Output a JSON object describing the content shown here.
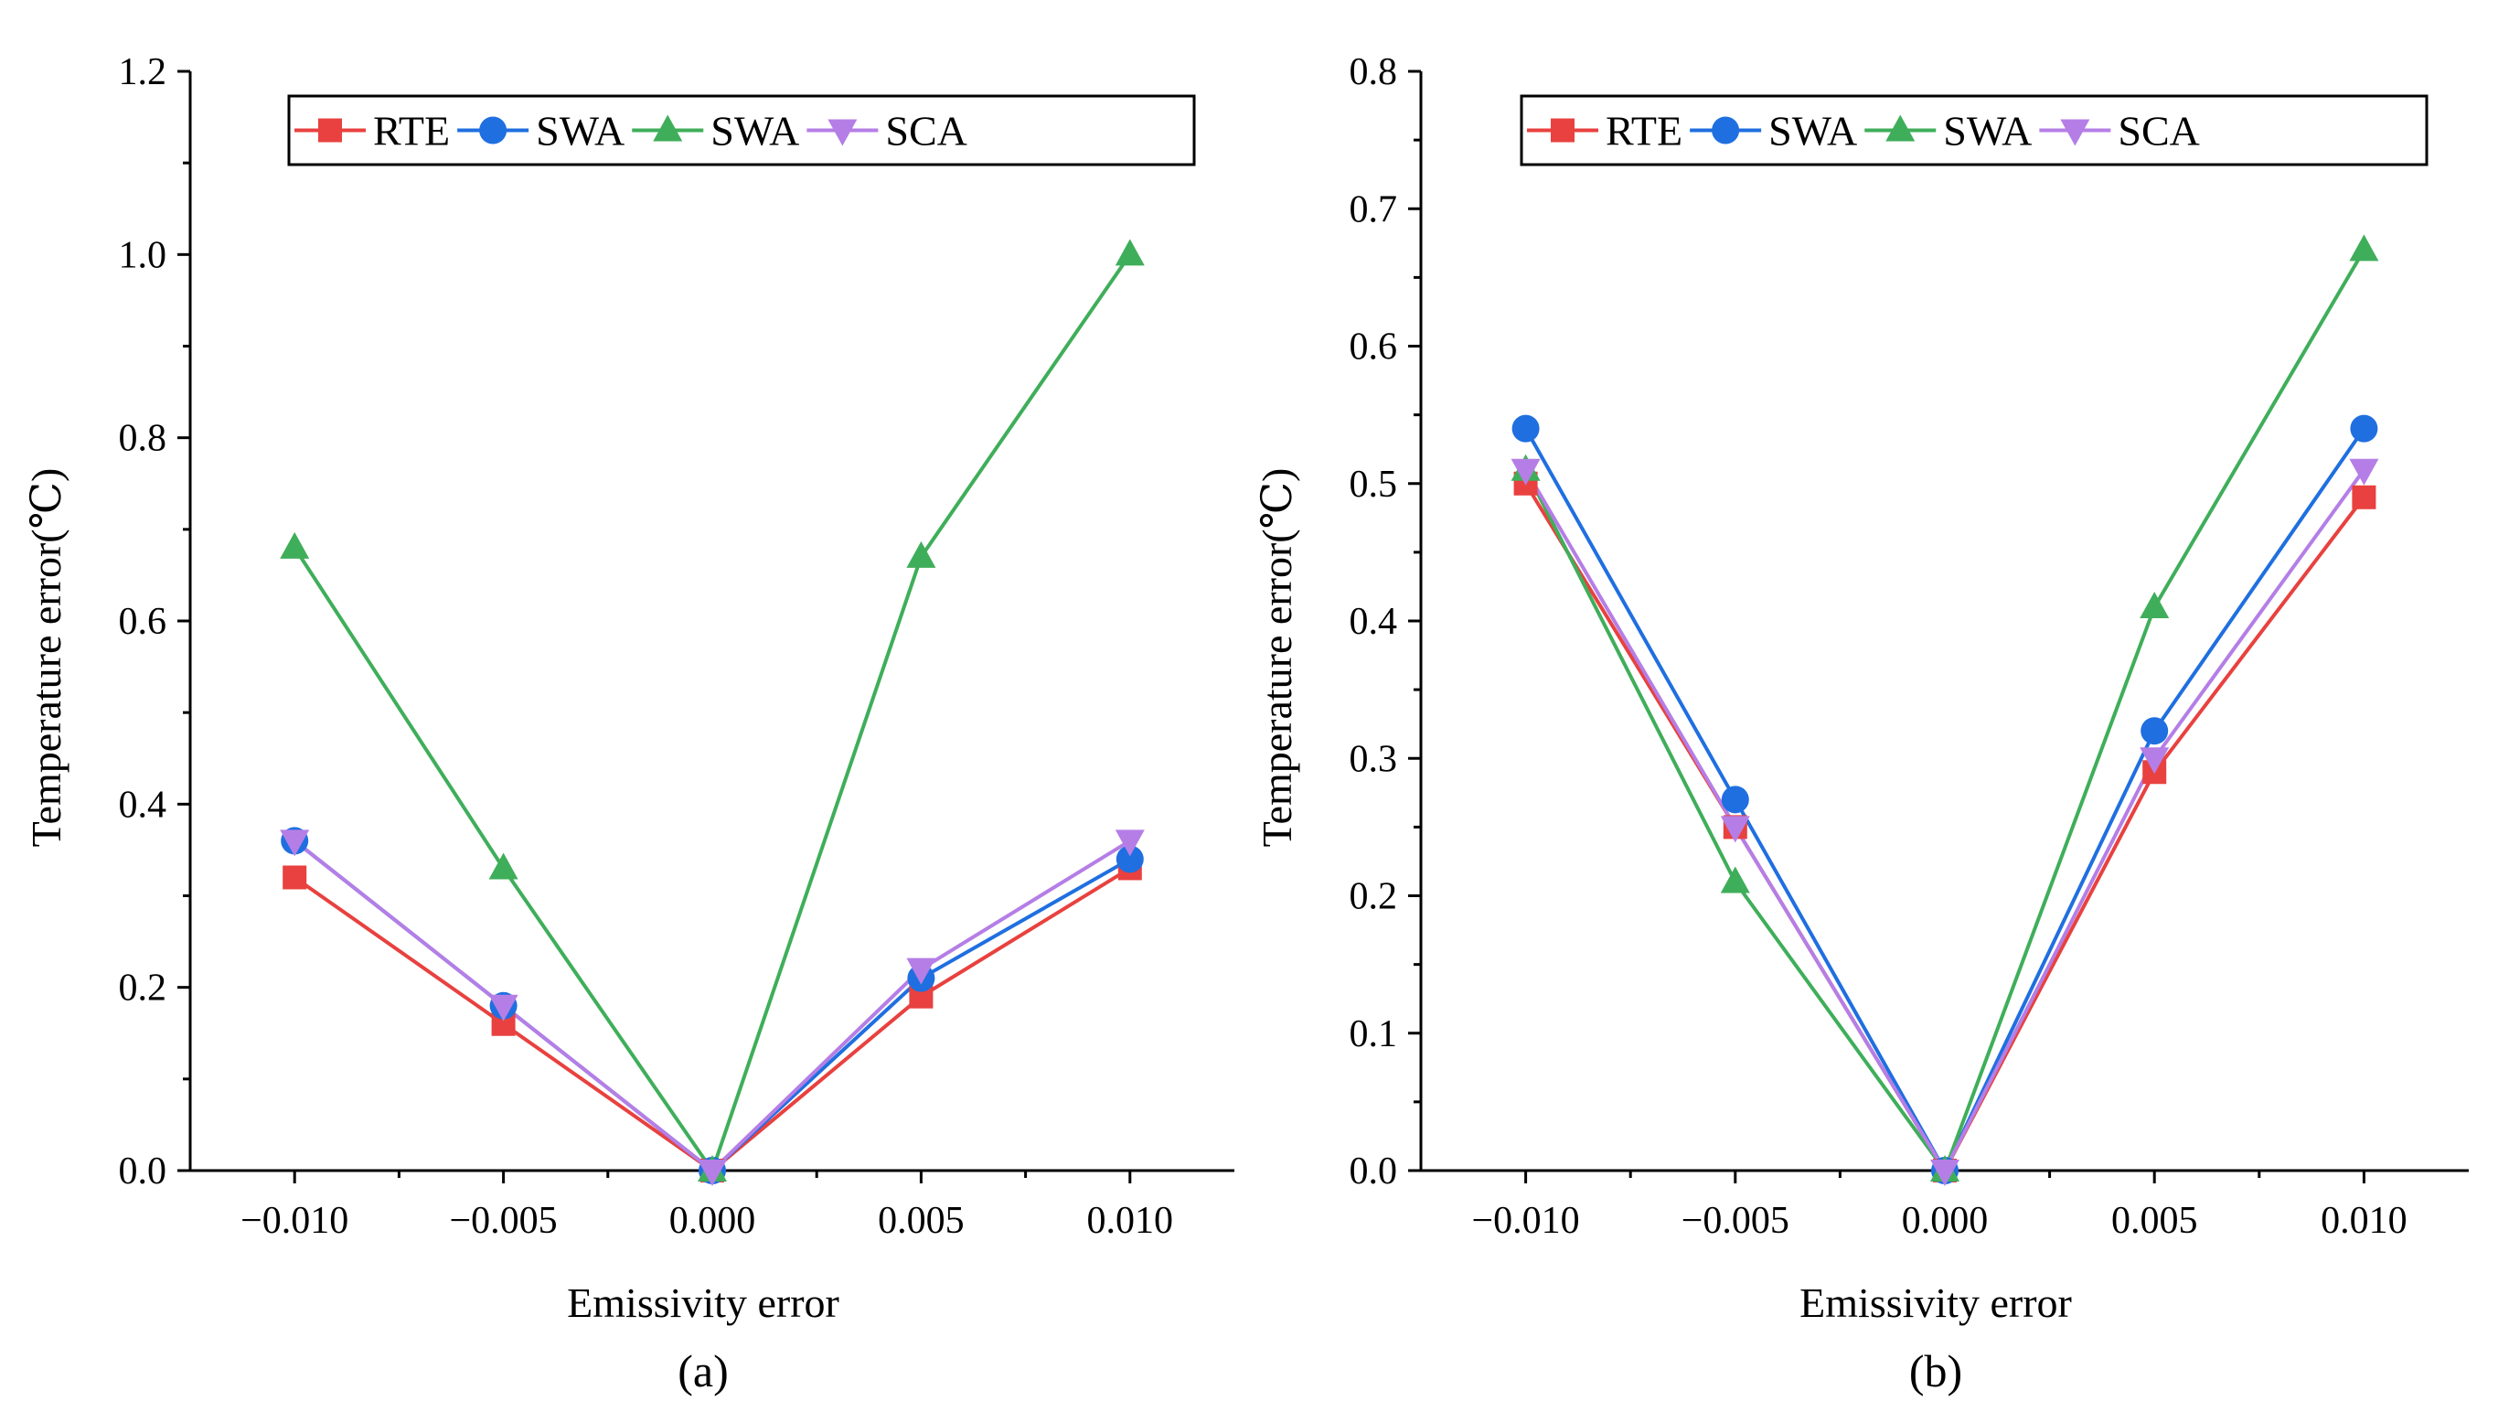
{
  "chart_data": [
    {
      "type": "line",
      "panel_label": "(a)",
      "xlabel": "Emissivity error",
      "ylabel": "Temperature error(℃)",
      "x": [
        -0.01,
        -0.005,
        0.0,
        0.005,
        0.01
      ],
      "x_tick_labels": [
        "−0.010",
        "−0.005",
        "0.000",
        "0.005",
        "0.010"
      ],
      "xlim": [
        -0.0125,
        0.0125
      ],
      "ylim": [
        0,
        1.2
      ],
      "y_ticks": [
        0.0,
        0.2,
        0.4,
        0.6,
        0.8,
        1.0,
        1.2
      ],
      "y_tick_labels": [
        "0.0",
        "0.2",
        "0.4",
        "0.6",
        "0.8",
        "1.0",
        "1.2"
      ],
      "grid": false,
      "legend_position": "top",
      "series": [
        {
          "name": "RTE",
          "color": "#e8413f",
          "marker": "square",
          "values": [
            0.32,
            0.16,
            0.0,
            0.19,
            0.33
          ]
        },
        {
          "name": "SWA",
          "color": "#1f6fe0",
          "marker": "circle",
          "values": [
            0.36,
            0.18,
            0.0,
            0.21,
            0.34
          ]
        },
        {
          "name": "SWA",
          "color": "#3fae5a",
          "marker": "triangle-up",
          "values": [
            0.68,
            0.33,
            0.0,
            0.67,
            1.0
          ]
        },
        {
          "name": "SCA",
          "color": "#b57ee6",
          "marker": "triangle-down",
          "values": [
            0.36,
            0.18,
            0.0,
            0.22,
            0.36
          ]
        }
      ]
    },
    {
      "type": "line",
      "panel_label": "(b)",
      "xlabel": "Emissivity error",
      "ylabel": "Temperature error(℃)",
      "x": [
        -0.01,
        -0.005,
        0.0,
        0.005,
        0.01
      ],
      "x_tick_labels": [
        "−0.010",
        "−0.005",
        "0.000",
        "0.005",
        "0.010"
      ],
      "xlim": [
        -0.0125,
        0.0125
      ],
      "ylim": [
        0,
        0.8
      ],
      "y_ticks": [
        0.0,
        0.1,
        0.2,
        0.3,
        0.4,
        0.5,
        0.6,
        0.7,
        0.8
      ],
      "y_tick_labels": [
        "0.0",
        "0.1",
        "0.2",
        "0.3",
        "0.4",
        "0.5",
        "0.6",
        "0.7",
        "0.8"
      ],
      "grid": false,
      "legend_position": "top",
      "series": [
        {
          "name": "RTE",
          "color": "#e8413f",
          "marker": "square",
          "values": [
            0.5,
            0.25,
            0.0,
            0.29,
            0.49
          ]
        },
        {
          "name": "SWA",
          "color": "#1f6fe0",
          "marker": "circle",
          "values": [
            0.54,
            0.27,
            0.0,
            0.32,
            0.54
          ]
        },
        {
          "name": "SWA",
          "color": "#3fae5a",
          "marker": "triangle-up",
          "values": [
            0.51,
            0.21,
            0.0,
            0.41,
            0.67
          ]
        },
        {
          "name": "SCA",
          "color": "#b57ee6",
          "marker": "triangle-down",
          "values": [
            0.51,
            0.25,
            0.0,
            0.3,
            0.51
          ]
        }
      ]
    }
  ]
}
